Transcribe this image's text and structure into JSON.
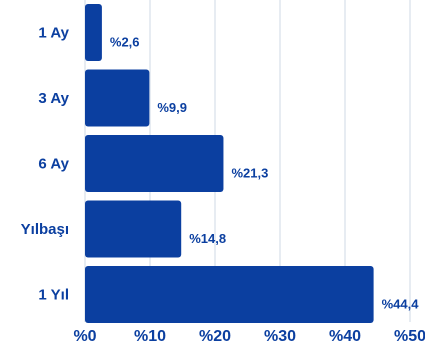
{
  "colors": {
    "bar": "#0b3fa0",
    "text": "#0b3fa0",
    "grid": "#cfd8e6"
  },
  "chart_data": {
    "type": "bar",
    "orientation": "horizontal",
    "categories": [
      "1 Ay",
      "3 Ay",
      "6 Ay",
      "Yılbaşı",
      "1 Yıl"
    ],
    "values": [
      2.6,
      9.9,
      21.3,
      14.8,
      44.4
    ],
    "value_labels": [
      "%2,6",
      "%9,9",
      "%21,3",
      "%14,8",
      "%44,4"
    ],
    "xlim": [
      0,
      50
    ],
    "x_ticks": [
      0,
      10,
      20,
      30,
      40,
      50
    ],
    "x_tick_labels": [
      "%0",
      "%10",
      "%20",
      "%30",
      "%40",
      "%50"
    ],
    "grid": "vertical",
    "legend": "none",
    "title": "",
    "xlabel": "",
    "ylabel": ""
  }
}
